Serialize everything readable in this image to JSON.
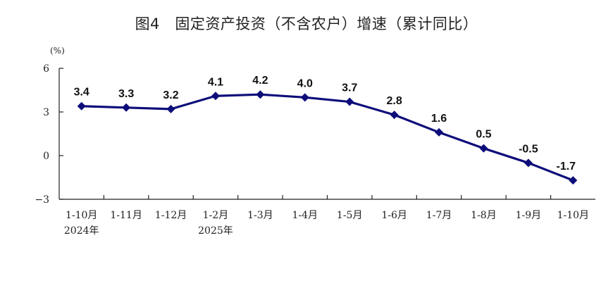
{
  "chart_data": {
    "type": "line",
    "title": "图4　固定资产投资（不含农户）增速（累计同比）",
    "unit": "(%)",
    "categories": [
      "1-10月",
      "1-11月",
      "1-12月",
      "1-2月",
      "1-3月",
      "1-4月",
      "1-5月",
      "1-6月",
      "1-7月",
      "1-8月",
      "1-9月",
      "1-10月"
    ],
    "year_labels": [
      {
        "category_index": 0,
        "label": "2024年"
      },
      {
        "category_index": 3,
        "label": "2025年"
      }
    ],
    "series": [
      {
        "values": [
          3.4,
          3.3,
          3.2,
          4.1,
          4.2,
          4.0,
          3.7,
          2.8,
          1.6,
          0.5,
          -0.5,
          -1.7
        ]
      }
    ],
    "data_labels": [
      "3.4",
      "3.3",
      "3.2",
      "4.1",
      "4.2",
      "4.0",
      "3.7",
      "2.8",
      "1.6",
      "0.5",
      "-0.5",
      "-1.7"
    ],
    "ylim": [
      -3,
      6
    ],
    "yticks": [
      6,
      3,
      0,
      -3
    ],
    "ytick_labels": [
      "6",
      "3",
      "0",
      "−3"
    ],
    "grid": false,
    "legend": "none",
    "line_color": "#0d0d7a",
    "marker": "diamond"
  }
}
